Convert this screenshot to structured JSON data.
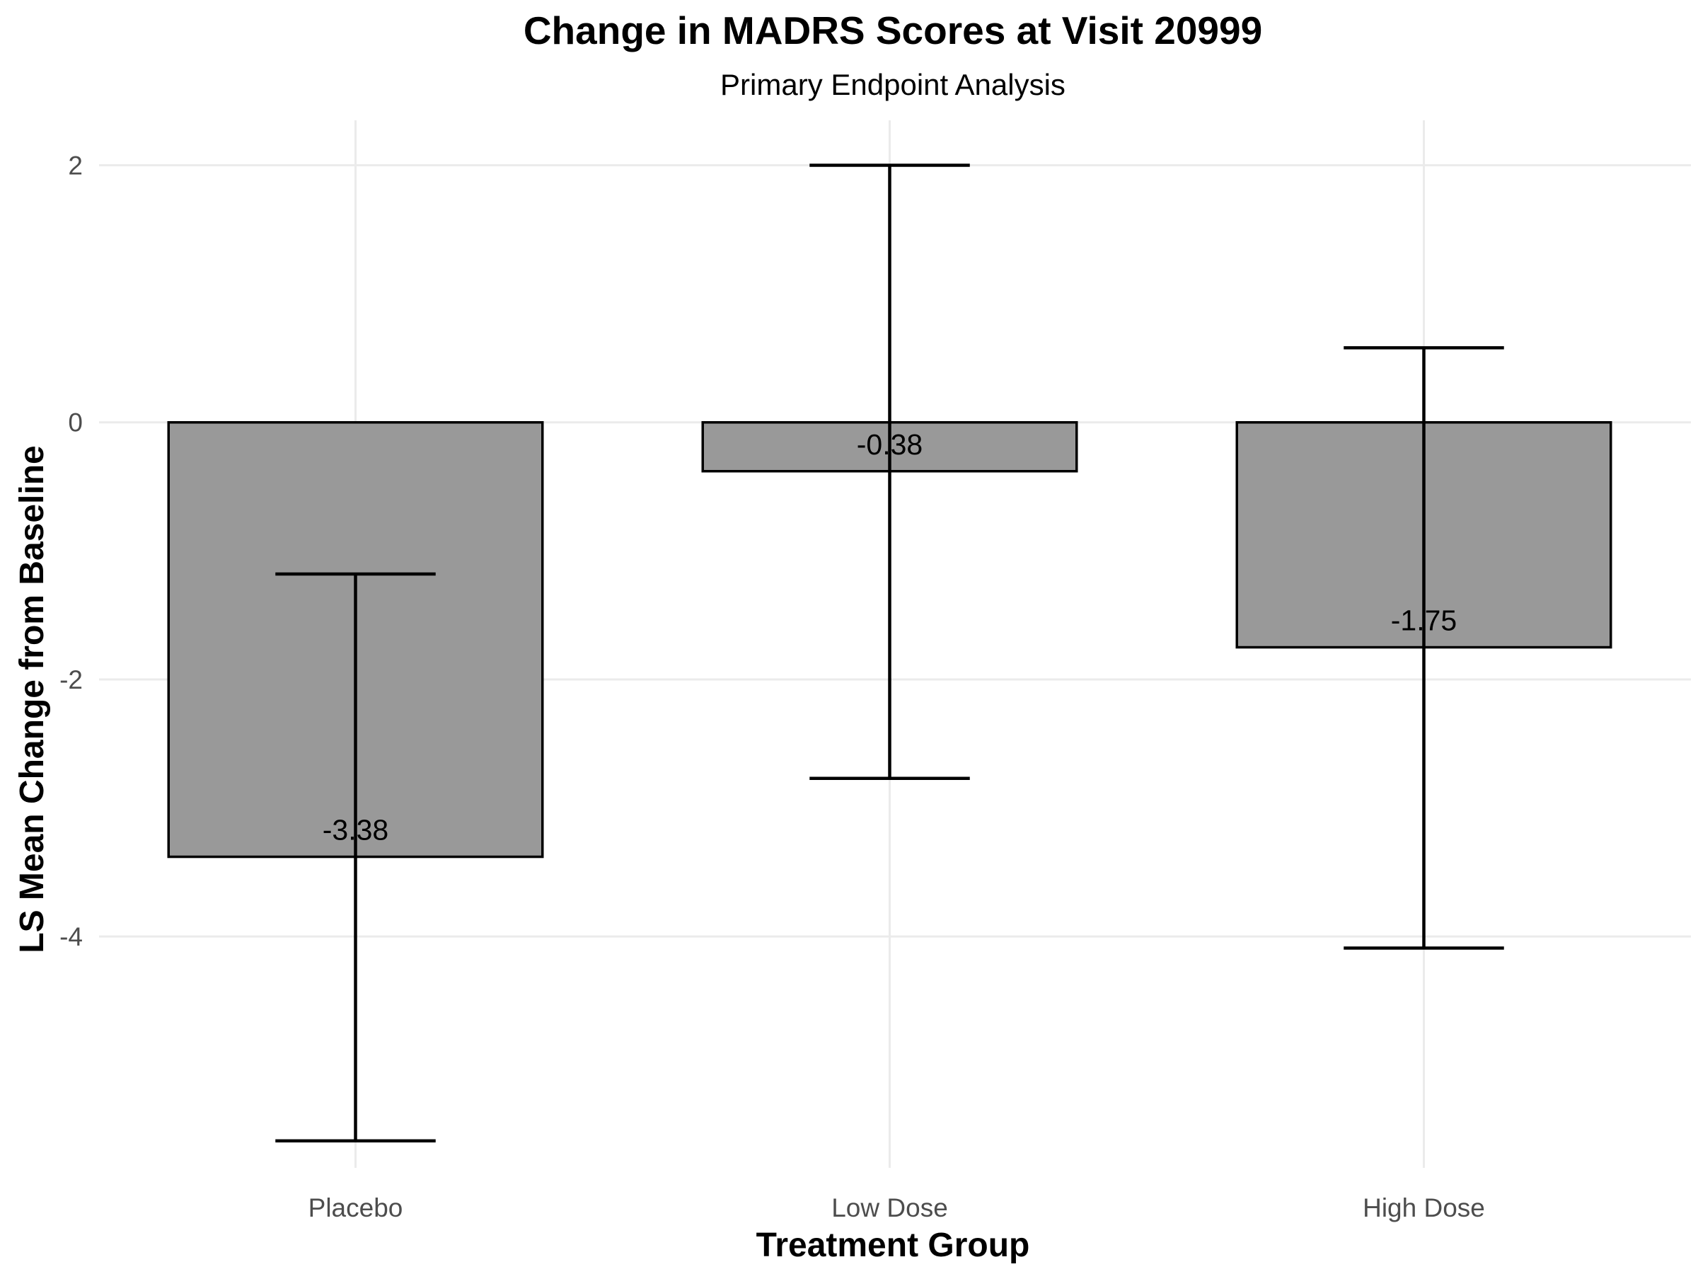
{
  "chart_data": {
    "type": "bar",
    "title": "Change in MADRS Scores at Visit 20999",
    "subtitle": "Primary Endpoint Analysis",
    "xlabel": "Treatment Group",
    "ylabel": "LS Mean Change from Baseline",
    "categories": [
      "Placebo",
      "Low Dose",
      "High Dose"
    ],
    "values": [
      -3.38,
      -0.38,
      -1.75
    ],
    "value_labels": [
      "-3.38",
      "-0.38",
      "-1.75"
    ],
    "error_lower": [
      -5.59,
      -2.77,
      -4.09
    ],
    "error_upper": [
      -1.18,
      2.0,
      0.58
    ],
    "ylim": [
      -5.8,
      2.35
    ],
    "yticks": [
      2,
      0,
      -2,
      -4
    ],
    "ytick_labels": [
      "2",
      "0",
      "-2",
      "-4"
    ],
    "grid": true,
    "legend": "none",
    "colors": {
      "bar_fill": "#999999",
      "bar_stroke": "#000000",
      "grid": "#ebebeb"
    }
  }
}
